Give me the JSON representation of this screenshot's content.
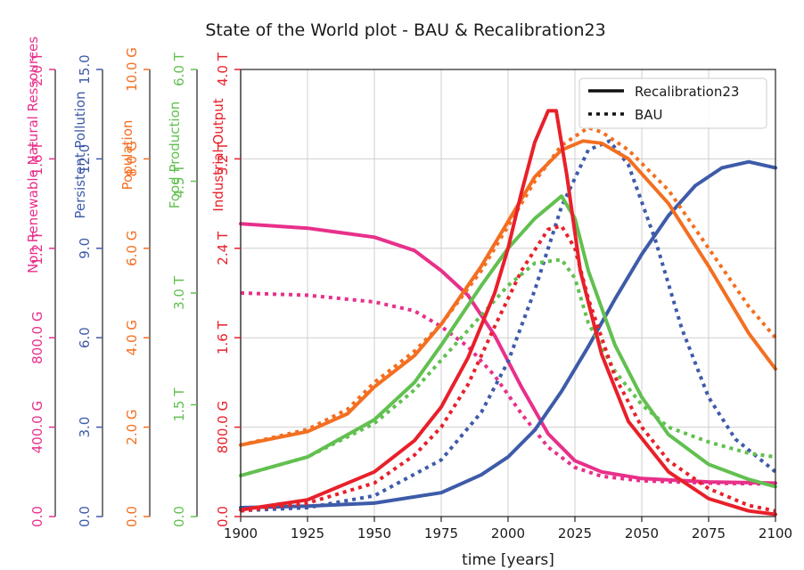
{
  "chart_data": {
    "type": "line",
    "title": "State of the World plot - BAU & Recalibration23",
    "xlabel": "time [years]",
    "xlim": [
      1900,
      2100
    ],
    "xticks": [
      1900,
      1925,
      1950,
      1975,
      2000,
      2025,
      2050,
      2075,
      2100
    ],
    "xtick_labels": [
      "1900",
      "1925",
      "1950",
      "1975",
      "2000",
      "2025",
      "2050",
      "2075",
      "2100"
    ],
    "grid": true,
    "legend_position": "top-right",
    "legend": [
      {
        "label": "Recalibration23",
        "style": "solid"
      },
      {
        "label": "BAU",
        "style": "dotted"
      }
    ],
    "axes": [
      {
        "key": "nrr",
        "label": "Non Renewable Natural Ressources",
        "color": "#e8308a",
        "ylim": [
          0,
          2000000000000
        ],
        "tick_labels": [
          "0.0",
          "400.0 G",
          "800.0 G",
          "1.2 T",
          "1.6 T",
          "2.0 T"
        ]
      },
      {
        "key": "pp",
        "label": "Persistent Pollution",
        "color": "#3e5ba9",
        "ylim": [
          0,
          15
        ],
        "tick_labels": [
          "0.0",
          "3.0",
          "6.0",
          "9.0",
          "12.0",
          "15.0"
        ]
      },
      {
        "key": "pop",
        "label": "Population",
        "color": "#f36f21",
        "ylim": [
          0,
          10000000000
        ],
        "tick_labels": [
          "0.0",
          "2.0 G",
          "4.0 G",
          "6.0 G",
          "8.0 G",
          "10.0 G"
        ]
      },
      {
        "key": "food",
        "label": "Food Production",
        "color": "#62c050",
        "ylim": [
          0,
          6000000000000
        ],
        "tick_labels": [
          "0.0",
          "1.5 T",
          "3.0 T",
          "4.5 T",
          "6.0 T"
        ]
      },
      {
        "key": "io",
        "label": "Industrial Output",
        "color": "#e8202a",
        "ylim": [
          0,
          4000000000000
        ],
        "tick_labels": [
          "0.0",
          "800.0 G",
          "1.6 T",
          "2.4 T",
          "3.2 T",
          "4.0 T"
        ]
      }
    ],
    "series": [
      {
        "name": "Recalibration23",
        "axis": "nrr",
        "style": "solid",
        "x": [
          1900,
          1925,
          1950,
          1965,
          1975,
          1985,
          1995,
          2005,
          2015,
          2025,
          2035,
          2050,
          2075,
          2100
        ],
        "y": [
          1310000000000.0,
          1290000000000.0,
          1250000000000.0,
          1190000000000.0,
          1100000000000.0,
          990000000000.0,
          810000000000.0,
          580000000000.0,
          370000000000.0,
          250000000000.0,
          200000000000.0,
          170000000000.0,
          155000000000.0,
          150000000000.0
        ]
      },
      {
        "name": "BAU",
        "axis": "nrr",
        "style": "dotted",
        "x": [
          1900,
          1925,
          1950,
          1965,
          1975,
          1985,
          1995,
          2005,
          2015,
          2025,
          2035,
          2050,
          2075,
          2100
        ],
        "y": [
          1000000000000.0,
          990000000000.0,
          960000000000.0,
          920000000000.0,
          850000000000.0,
          760000000000.0,
          630000000000.0,
          460000000000.0,
          310000000000.0,
          220000000000.0,
          180000000000.0,
          160000000000.0,
          150000000000.0,
          145000000000.0
        ]
      },
      {
        "name": "Recalibration23",
        "axis": "pp",
        "style": "solid",
        "x": [
          1900,
          1925,
          1950,
          1975,
          1990,
          2000,
          2010,
          2020,
          2030,
          2040,
          2050,
          2060,
          2070,
          2080,
          2090,
          2100
        ],
        "y": [
          0.3,
          0.35,
          0.45,
          0.8,
          1.4,
          2.0,
          2.9,
          4.2,
          5.7,
          7.3,
          8.8,
          10.1,
          11.1,
          11.7,
          11.9,
          11.7
        ]
      },
      {
        "name": "BAU",
        "axis": "pp",
        "style": "dotted",
        "x": [
          1900,
          1925,
          1950,
          1975,
          1990,
          2000,
          2010,
          2020,
          2030,
          2038,
          2045,
          2055,
          2065,
          2075,
          2085,
          2100
        ],
        "y": [
          0.2,
          0.3,
          0.7,
          1.9,
          3.5,
          5.2,
          7.6,
          10.4,
          12.3,
          12.6,
          11.8,
          9.3,
          6.3,
          4.0,
          2.6,
          1.5
        ]
      },
      {
        "name": "Recalibration23",
        "axis": "pop",
        "style": "solid",
        "x": [
          1900,
          1925,
          1940,
          1950,
          1965,
          1975,
          1990,
          2000,
          2010,
          2020,
          2028,
          2035,
          2045,
          2060,
          2075,
          2090,
          2100
        ],
        "y": [
          1600000000.0,
          1900000000.0,
          2300000000.0,
          2900000000.0,
          3600000000.0,
          4300000000.0,
          5600000000.0,
          6600000000.0,
          7600000000.0,
          8200000000.0,
          8400000000.0,
          8350000000.0,
          8000000000.0,
          7000000000.0,
          5600000000.0,
          4100000000.0,
          3300000000.0
        ]
      },
      {
        "name": "BAU",
        "axis": "pop",
        "style": "dotted",
        "x": [
          1900,
          1925,
          1940,
          1950,
          1965,
          1975,
          1990,
          2000,
          2010,
          2020,
          2030,
          2035,
          2045,
          2060,
          2075,
          2090,
          2100
        ],
        "y": [
          1600000000.0,
          1950000000.0,
          2400000000.0,
          3000000000.0,
          3700000000.0,
          4300000000.0,
          5500000000.0,
          6500000000.0,
          7500000000.0,
          8300000000.0,
          8700000000.0,
          8600000000.0,
          8200000000.0,
          7300000000.0,
          6000000000.0,
          4700000000.0,
          4000000000.0
        ]
      },
      {
        "name": "Recalibration23",
        "axis": "food",
        "style": "solid",
        "x": [
          1900,
          1925,
          1950,
          1965,
          1975,
          1990,
          2000,
          2010,
          2020,
          2025,
          2030,
          2040,
          2050,
          2060,
          2075,
          2090,
          2100
        ],
        "y": [
          550000000000.0,
          800000000000.0,
          1300000000000.0,
          1800000000000.0,
          2300000000000.0,
          3100000000000.0,
          3600000000000.0,
          4000000000000.0,
          4300000000000.0,
          4000000000000.0,
          3300000000000.0,
          2300000000000.0,
          1600000000000.0,
          1100000000000.0,
          700000000000.0,
          500000000000.0,
          400000000000.0
        ]
      },
      {
        "name": "BAU",
        "axis": "food",
        "style": "dotted",
        "x": [
          1900,
          1925,
          1950,
          1965,
          1975,
          1990,
          2000,
          2010,
          2020,
          2025,
          2030,
          2040,
          2050,
          2060,
          2075,
          2090,
          2100
        ],
        "y": [
          550000000000.0,
          800000000000.0,
          1250000000000.0,
          1700000000000.0,
          2100000000000.0,
          2700000000000.0,
          3100000000000.0,
          3400000000000.0,
          3450000000000.0,
          3200000000000.0,
          2600000000000.0,
          1950000000000.0,
          1500000000000.0,
          1200000000000.0,
          1000000000000.0,
          850000000000.0,
          800000000000.0
        ]
      },
      {
        "name": "Recalibration23",
        "axis": "io",
        "style": "solid",
        "x": [
          1900,
          1925,
          1950,
          1965,
          1975,
          1985,
          1995,
          2000,
          2005,
          2010,
          2015,
          2018,
          2022,
          2027,
          2035,
          2045,
          2060,
          2075,
          2090,
          2100
        ],
        "y": [
          60000000000.0,
          150000000000.0,
          400000000000.0,
          680000000000.0,
          980000000000.0,
          1420000000000.0,
          2000000000000.0,
          2400000000000.0,
          2900000000000.0,
          3350000000000.0,
          3630000000000.0,
          3630000000000.0,
          3050000000000.0,
          2200000000000.0,
          1450000000000.0,
          850000000000.0,
          400000000000.0,
          160000000000.0,
          50000000000.0,
          20000000000.0
        ]
      },
      {
        "name": "BAU",
        "axis": "io",
        "style": "dotted",
        "x": [
          1900,
          1925,
          1950,
          1965,
          1975,
          1985,
          1995,
          2005,
          2015,
          2020,
          2025,
          2030,
          2040,
          2050,
          2060,
          2075,
          2090,
          2100
        ],
        "y": [
          50000000000.0,
          120000000000.0,
          300000000000.0,
          550000000000.0,
          800000000000.0,
          1180000000000.0,
          1700000000000.0,
          2200000000000.0,
          2570000000000.0,
          2600000000000.0,
          2400000000000.0,
          1950000000000.0,
          1250000000000.0,
          800000000000.0,
          500000000000.0,
          250000000000.0,
          100000000000.0,
          50000000000.0
        ]
      }
    ]
  }
}
